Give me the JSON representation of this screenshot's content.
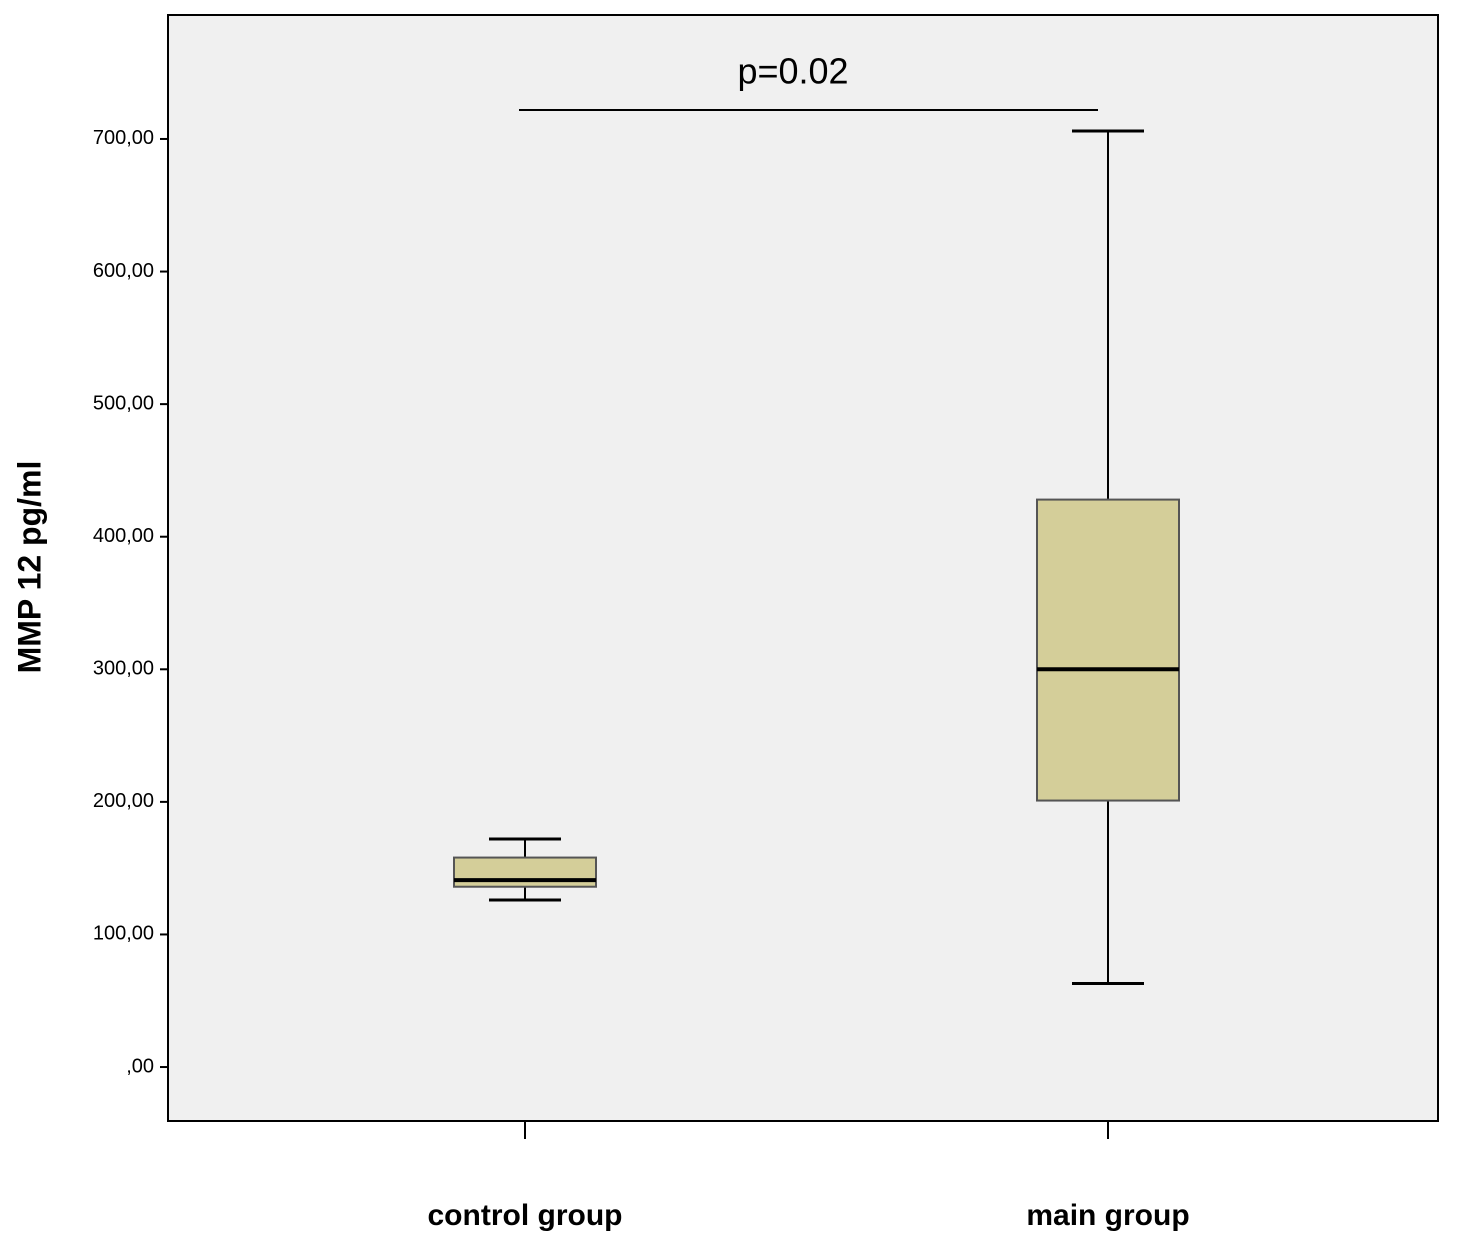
{
  "chart_data": {
    "type": "box",
    "annotation": "p=0.02",
    "y_label": "MMP 12 pg/ml",
    "categories": [
      "control group",
      "main group"
    ],
    "boxes": [
      {
        "min": 126,
        "q1": 136,
        "median": 141,
        "q3": 158,
        "max": 172
      },
      {
        "min": 63,
        "q1": 201,
        "median": 300,
        "q3": 428,
        "max": 706
      }
    ],
    "color": "#d4ce99",
    "ylim": [
      -40.7,
      793.5
    ],
    "yticks": [
      {
        "value": 0,
        "label": ",00"
      },
      {
        "value": 100,
        "label": "100,00"
      },
      {
        "value": 200,
        "label": "200,00"
      },
      {
        "value": 300,
        "label": "300,00"
      },
      {
        "value": 400,
        "label": "400,00"
      },
      {
        "value": 500,
        "label": "500,00"
      },
      {
        "value": 600,
        "label": "600,00"
      },
      {
        "value": 700,
        "label": "700,00"
      }
    ]
  }
}
